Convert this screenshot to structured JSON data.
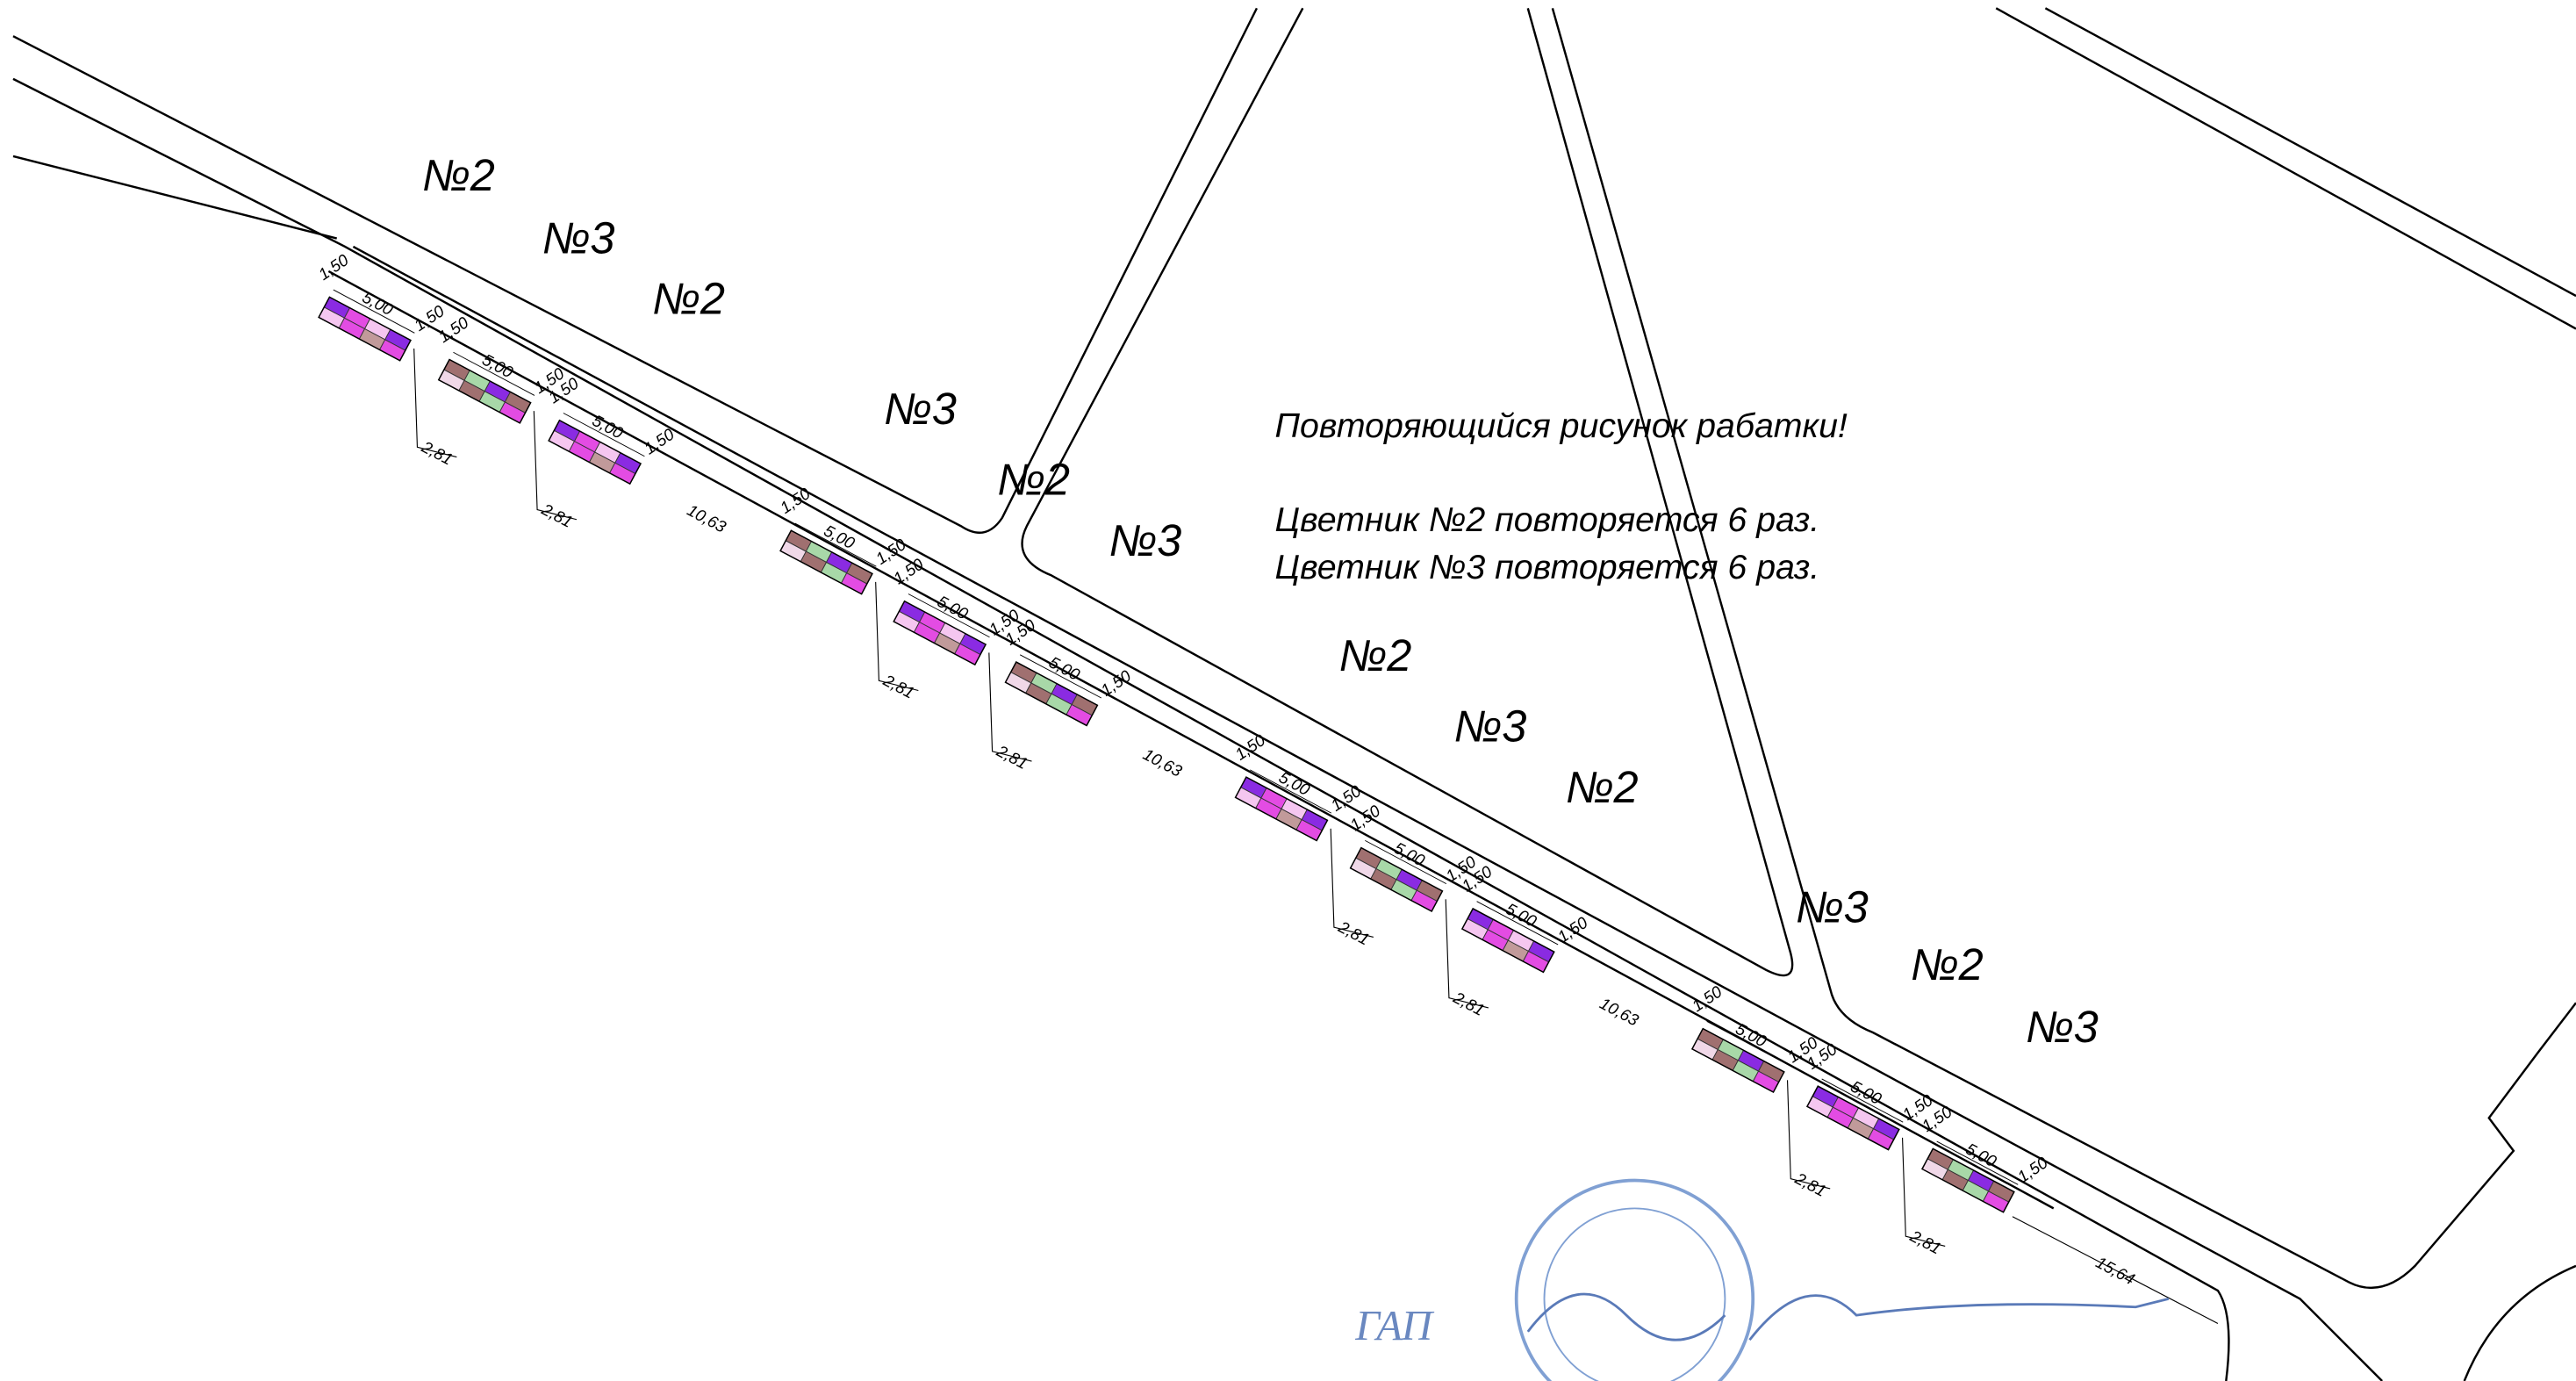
{
  "note": {
    "line1": "Повторяющийся рисунок рабатки!",
    "line2": "Цветник №2 повторяется 6 раз.",
    "line3": "Цветник №3 повторяется 6 раз."
  },
  "colors": {
    "№2": [
      "#8a2be2",
      "#e34ce3",
      "#f5c6f0",
      "#8a2be2",
      "#f5c6f0",
      "#e34ce3",
      "#c19a9a",
      "#e34ce3"
    ],
    "№3": [
      "#a07070",
      "#a8d8a8",
      "#8a2be2",
      "#a07070",
      "#f0d8e8",
      "#a07070",
      "#a8d8a8",
      "#e34ce3"
    ]
  },
  "beds": [
    {
      "type": "№2",
      "dims": [
        "1,50",
        "5,00",
        "1,50"
      ],
      "offset": "2,81"
    },
    {
      "type": "№3",
      "dims": [
        "1,50",
        "5,00",
        "1,50"
      ],
      "offset": "2,81"
    },
    {
      "type": "№2",
      "dims": [
        "1,50",
        "5,00",
        "1,50"
      ]
    },
    {
      "type": "№3",
      "dims": [
        "1,50",
        "5,00",
        "1,50"
      ],
      "offset": "2,81"
    },
    {
      "type": "№2",
      "dims": [
        "1,50",
        "5,00",
        "1,50"
      ],
      "offset": "2,81"
    },
    {
      "type": "№3",
      "dims": [
        "1,50",
        "5,00",
        "1,50"
      ]
    },
    {
      "type": "№2",
      "dims": [
        "1,50",
        "5,00",
        "1,50"
      ],
      "offset": "2,81"
    },
    {
      "type": "№3",
      "dims": [
        "1,50",
        "5,00",
        "1,50"
      ],
      "offset": "2,81"
    },
    {
      "type": "№2",
      "dims": [
        "1,50",
        "5,00",
        "1,50"
      ]
    },
    {
      "type": "№3",
      "dims": [
        "1,50",
        "5,00",
        "1,50"
      ],
      "offset": "2,81"
    },
    {
      "type": "№2",
      "dims": [
        "1,50",
        "5,00",
        "1,50"
      ],
      "offset": "2,81"
    },
    {
      "type": "№3",
      "dims": [
        "1,50",
        "5,00",
        "1,50"
      ]
    }
  ],
  "spacings": [
    "10,63",
    "10,63",
    "10,63"
  ],
  "end_spacing": "15,64",
  "signature": "ГАП"
}
